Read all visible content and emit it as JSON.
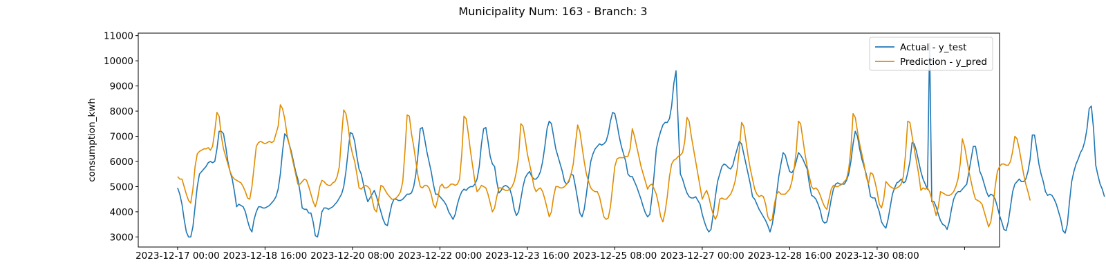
{
  "chart_data": {
    "type": "line",
    "title": "Municipality Num: 163 - Branch: 3",
    "xlabel": "",
    "ylabel": "consumption_kwh",
    "ylim": [
      2600,
      11100
    ],
    "yticks": [
      3000,
      4000,
      5000,
      6000,
      7000,
      8000,
      9000,
      10000,
      11000
    ],
    "x_start": "2023-12-17 00:00",
    "x_step_hours": 1,
    "xticks": [
      {
        "label": "2023-12-17 00:00",
        "hour": 0
      },
      {
        "label": "2023-12-18 16:00",
        "hour": 40
      },
      {
        "label": "2023-12-20 08:00",
        "hour": 80
      },
      {
        "label": "2023-12-22 00:00",
        "hour": 120
      },
      {
        "label": "2023-12-23 16:00",
        "hour": 160
      },
      {
        "label": "2023-12-25 08:00",
        "hour": 200
      },
      {
        "label": "2023-12-27 00:00",
        "hour": 240
      },
      {
        "label": "2023-12-28 16:00",
        "hour": 280
      },
      {
        "label": "2023-12-30 08:00",
        "hour": 320
      },
      {
        "label": "",
        "hour": 360
      }
    ],
    "xlim_hours": [
      -18,
      376
    ],
    "legend": "upper-right",
    "grid": false,
    "series": [
      {
        "name": "Actual - y_test",
        "color": "#1f77b4",
        "values": [
          4950,
          4700,
          4300,
          3700,
          3200,
          3000,
          3000,
          3400,
          4200,
          5000,
          5500,
          5600,
          5700,
          5800,
          5950,
          6000,
          5950,
          6000,
          6500,
          7200,
          7200,
          7100,
          6600,
          6000,
          5600,
          5300,
          4800,
          4200,
          4300,
          4250,
          4200,
          4000,
          3650,
          3350,
          3200,
          3700,
          4000,
          4200,
          4200,
          4150,
          4150,
          4200,
          4250,
          4350,
          4450,
          4600,
          4900,
          5500,
          6400,
          7100,
          7000,
          6700,
          6400,
          6000,
          5600,
          5300,
          4800,
          4150,
          4100,
          4100,
          3950,
          3950,
          3600,
          3050,
          3000,
          3400,
          4000,
          4150,
          4150,
          4100,
          4150,
          4200,
          4300,
          4400,
          4550,
          4700,
          5000,
          5600,
          6400,
          7150,
          7100,
          6800,
          6200,
          5700,
          5500,
          5100,
          4700,
          4400,
          4550,
          4700,
          4850,
          4600,
          4300,
          4000,
          3700,
          3500,
          3450,
          3900,
          4300,
          4500,
          4500,
          4450,
          4450,
          4500,
          4600,
          4700,
          4700,
          4750,
          5000,
          5500,
          6300,
          7300,
          7350,
          6900,
          6400,
          6000,
          5600,
          5100,
          4700,
          4700,
          4600,
          4500,
          4400,
          4250,
          4000,
          3850,
          3700,
          3900,
          4300,
          4600,
          4800,
          4900,
          4850,
          4950,
          5000,
          5000,
          5100,
          5300,
          5800,
          6700,
          7300,
          7350,
          6800,
          6200,
          5900,
          5800,
          5200,
          4750,
          4850,
          5000,
          5050,
          5000,
          4900,
          4600,
          4100,
          3850,
          4000,
          4500,
          5000,
          5350,
          5500,
          5600,
          5400,
          5300,
          5300,
          5400,
          5600,
          6000,
          6600,
          7300,
          7600,
          7500,
          7000,
          6500,
          6200,
          5900,
          5600,
          5200,
          5100,
          5200,
          5500,
          5450,
          5000,
          4500,
          3950,
          3800,
          4100,
          4700,
          5400,
          6000,
          6300,
          6500,
          6600,
          6700,
          6650,
          6700,
          6800,
          7100,
          7600,
          7950,
          7900,
          7500,
          7000,
          6600,
          6300,
          6000,
          5500,
          5400,
          5400,
          5200,
          5000,
          4750,
          4500,
          4200,
          3950,
          3800,
          3900,
          4600,
          5500,
          6500,
          6900,
          7200,
          7450,
          7550,
          7550,
          7700,
          8200,
          9100,
          9600,
          7500,
          5500,
          5300,
          5000,
          4750,
          4600,
          4550,
          4550,
          4600,
          4450,
          4300,
          3900,
          3600,
          3350,
          3200,
          3300,
          3900,
          4600,
          5200,
          5500,
          5800,
          5900,
          5850,
          5750,
          5700,
          5850,
          6200,
          6500,
          6800,
          6700,
          6300,
          5900,
          5500,
          5100,
          4600,
          4500,
          4300,
          4100,
          3950,
          3800,
          3650,
          3450,
          3200,
          3500,
          4000,
          4700,
          5400,
          5900,
          6350,
          6250,
          5900,
          5600,
          5550,
          5700,
          6000,
          6350,
          6250,
          6100,
          5900,
          5700,
          5100,
          4650,
          4600,
          4500,
          4300,
          4050,
          3650,
          3550,
          3600,
          4000,
          4500,
          4900,
          5100,
          5150,
          5100,
          5100,
          5100,
          5250,
          5500,
          6000,
          6700,
          7200,
          7000,
          6500,
          6100,
          5800,
          5500,
          5100,
          4600,
          4550,
          4550,
          4250,
          4000,
          3600,
          3450,
          3350,
          3700,
          4200,
          4700,
          4950,
          5150,
          5200,
          5300,
          5150,
          5200,
          5550,
          6000,
          6750,
          6700,
          6400,
          6000,
          5600,
          5300,
          5100,
          4900,
          10700,
          4400,
          4400,
          4200,
          3900,
          3650,
          3500,
          3450,
          3300,
          3600,
          4100,
          4500,
          4700,
          4800,
          4800,
          4900,
          5000,
          5100,
          5600,
          6100,
          6600,
          6600,
          6100,
          5600,
          5400,
          5100,
          4800,
          4600,
          4700,
          4650,
          4500,
          4200,
          3850,
          3600,
          3300,
          3250,
          3600,
          4200,
          4800,
          5100,
          5200,
          5300,
          5200,
          5200,
          5300,
          5600,
          6100,
          7050,
          7050,
          6500,
          5900,
          5500,
          5200,
          4800,
          4650,
          4700,
          4650,
          4500,
          4300,
          4000,
          3700,
          3250,
          3150,
          3500,
          4400,
          5200,
          5600,
          5900,
          6100,
          6350,
          6500,
          6800,
          7300,
          8100,
          8200,
          7300,
          5850,
          5450,
          5100,
          4900,
          4600
        ]
      },
      {
        "name": "Prediction - y_pred",
        "color": "#e08c00",
        "values": [
          5400,
          5300,
          5300,
          5000,
          4700,
          4450,
          4350,
          4900,
          5800,
          6300,
          6400,
          6450,
          6500,
          6500,
          6550,
          6450,
          6600,
          7200,
          7950,
          7800,
          7000,
          6500,
          6200,
          5900,
          5600,
          5400,
          5300,
          5250,
          5200,
          5150,
          5000,
          4800,
          4550,
          4500,
          5000,
          5800,
          6600,
          6750,
          6800,
          6750,
          6700,
          6750,
          6800,
          6750,
          6800,
          7100,
          7400,
          8250,
          8100,
          7700,
          7100,
          6700,
          6300,
          5900,
          5500,
          5100,
          5100,
          5200,
          5300,
          5250,
          5000,
          4700,
          4400,
          4200,
          4500,
          5000,
          5250,
          5200,
          5100,
          5050,
          5050,
          5150,
          5200,
          5400,
          5800,
          7000,
          8050,
          7900,
          7400,
          6700,
          6300,
          6000,
          5500,
          4950,
          4900,
          5000,
          5050,
          5000,
          4900,
          4500,
          4100,
          4000,
          4500,
          5050,
          5000,
          4850,
          4700,
          4600,
          4500,
          4500,
          4550,
          4650,
          4800,
          5200,
          6400,
          7850,
          7800,
          7100,
          6600,
          6000,
          5400,
          5000,
          4950,
          5050,
          5050,
          4950,
          4700,
          4300,
          4150,
          4500,
          5000,
          5100,
          4950,
          4950,
          5000,
          5100,
          5100,
          5050,
          5100,
          5300,
          6300,
          7800,
          7700,
          7100,
          6400,
          5800,
          5200,
          4800,
          4900,
          5050,
          5000,
          4950,
          4700,
          4350,
          4000,
          4150,
          4600,
          4950,
          4950,
          4900,
          4850,
          4850,
          4900,
          5000,
          5200,
          5600,
          6200,
          7500,
          7400,
          6900,
          6300,
          5900,
          5500,
          5000,
          4800,
          4900,
          4950,
          4800,
          4500,
          4150,
          3800,
          4000,
          4600,
          5000,
          5000,
          4950,
          4950,
          5000,
          5100,
          5250,
          5500,
          5900,
          6700,
          7450,
          7200,
          6600,
          6000,
          5500,
          5200,
          4950,
          4850,
          4800,
          4800,
          4600,
          4200,
          3800,
          3700,
          3750,
          4200,
          5000,
          5800,
          6100,
          6150,
          6150,
          6150,
          6200,
          6200,
          6500,
          7300,
          7000,
          6600,
          6200,
          5800,
          5500,
          5200,
          4900,
          5050,
          5100,
          4900,
          4700,
          4300,
          3800,
          3600,
          4000,
          4600,
          5400,
          5900,
          6050,
          6100,
          6200,
          6250,
          6350,
          6800,
          7750,
          7600,
          7000,
          6500,
          6000,
          5500,
          5000,
          4500,
          4700,
          4850,
          4600,
          4200,
          3900,
          3700,
          3900,
          4500,
          4550,
          4500,
          4500,
          4600,
          4700,
          4900,
          5200,
          5700,
          6500,
          7550,
          7400,
          6800,
          6200,
          5700,
          5300,
          4900,
          4700,
          4600,
          4650,
          4600,
          4300,
          3800,
          3650,
          3700,
          4300,
          4700,
          4800,
          4700,
          4700,
          4700,
          4800,
          4900,
          5200,
          5700,
          6400,
          7600,
          7500,
          6900,
          6300,
          5800,
          5400,
          5000,
          4900,
          4950,
          4850,
          4650,
          4400,
          4200,
          4100,
          4500,
          4900,
          5050,
          5000,
          5000,
          5050,
          5100,
          5200,
          5300,
          5700,
          6500,
          7900,
          7750,
          7200,
          6700,
          6300,
          5900,
          5400,
          5100,
          5550,
          5500,
          5200,
          4800,
          4300,
          4150,
          4500,
          5200,
          5100,
          5000,
          4950,
          4900,
          4950,
          5000,
          5100,
          5400,
          6300,
          7600,
          7550,
          7000,
          6500,
          6000,
          5500,
          4850,
          4950,
          4900,
          4950,
          4800,
          4500,
          4200,
          3850,
          4200,
          4800,
          4750,
          4700,
          4650,
          4650,
          4700,
          4800,
          5000,
          5300,
          5900,
          6900,
          6600,
          6100,
          5600,
          5200,
          4800,
          4500,
          4450,
          4400,
          4300,
          4000,
          3700,
          3400,
          3600,
          4200,
          5000,
          5600,
          5800,
          5900,
          5900,
          5850,
          5850,
          6000,
          6400,
          7000,
          6900,
          6500,
          6000,
          5500,
          5100,
          4800,
          4450
        ]
      }
    ]
  }
}
